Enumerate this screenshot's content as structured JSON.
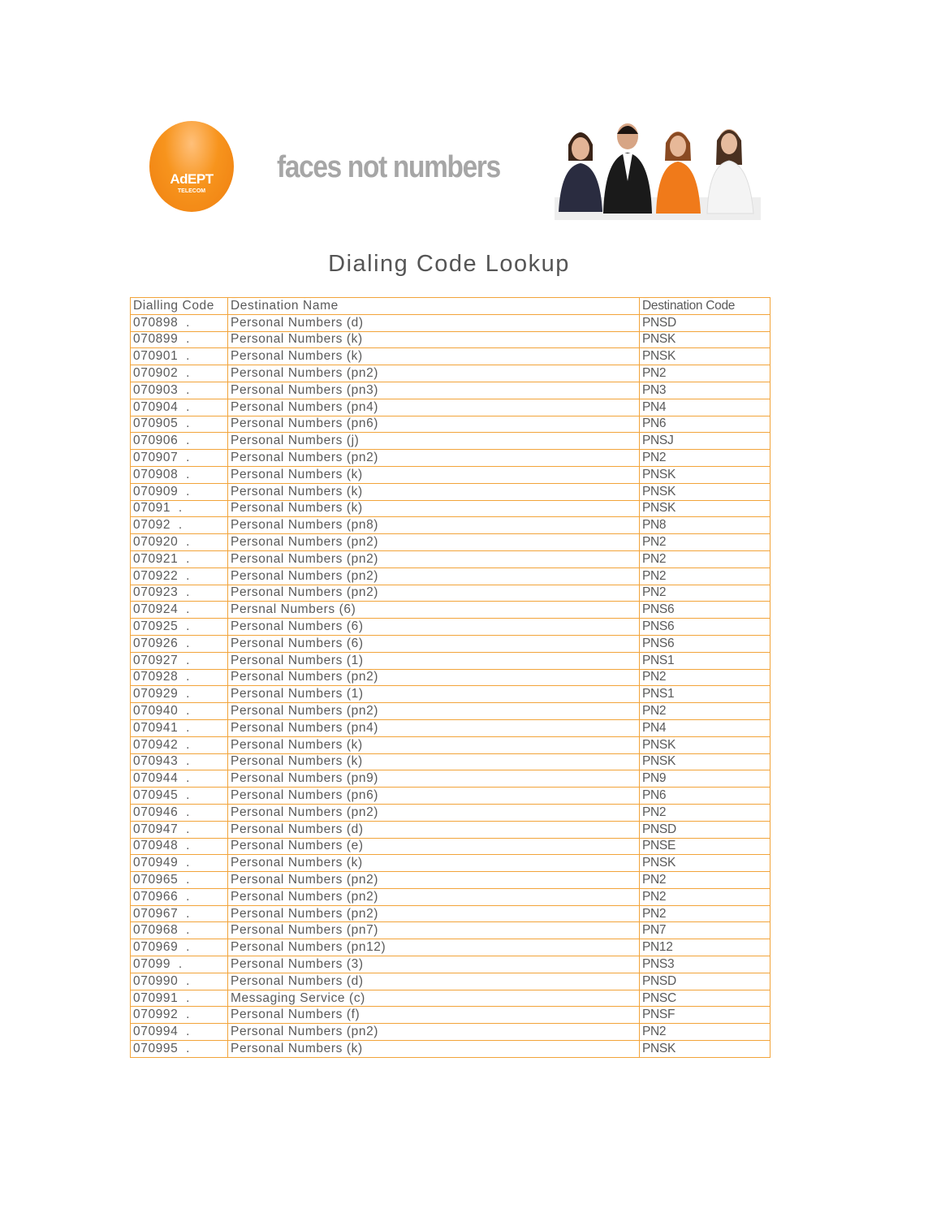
{
  "logo": {
    "brand": "AdEPT",
    "sub": "TELECOM",
    "color": "#f7941d"
  },
  "tagline": "faces not numbers",
  "title": "Dialing Code Lookup",
  "table": {
    "headers": [
      "Dialling Code",
      "Destination Name",
      "Destination Code"
    ],
    "border_color": "#f2a43a",
    "rows": [
      [
        "070898  .",
        "Personal Numbers (d)",
        "PNSD"
      ],
      [
        "070899  .",
        "Personal Numbers (k)",
        "PNSK"
      ],
      [
        "070901  .",
        "Personal Numbers (k)",
        "PNSK"
      ],
      [
        "070902  .",
        "Personal Numbers (pn2)",
        "PN2"
      ],
      [
        "070903  .",
        "Personal Numbers (pn3)",
        "PN3"
      ],
      [
        "070904  .",
        "Personal Numbers (pn4)",
        "PN4"
      ],
      [
        "070905  .",
        "Personal Numbers (pn6)",
        "PN6"
      ],
      [
        "070906  .",
        "Personal Numbers (j)",
        "PNSJ"
      ],
      [
        "070907  .",
        "Personal Numbers (pn2)",
        "PN2"
      ],
      [
        "070908  .",
        "Personal Numbers (k)",
        "PNSK"
      ],
      [
        "070909  .",
        "Personal Numbers (k)",
        "PNSK"
      ],
      [
        "07091  .",
        "Personal Numbers (k)",
        "PNSK"
      ],
      [
        "07092  .",
        "Personal Numbers (pn8)",
        "PN8"
      ],
      [
        "070920  .",
        "Personal Numbers (pn2)",
        "PN2"
      ],
      [
        "070921  .",
        "Personal Numbers (pn2)",
        "PN2"
      ],
      [
        "070922  .",
        "Personal Numbers (pn2)",
        "PN2"
      ],
      [
        "070923  .",
        "Personal Numbers (pn2)",
        "PN2"
      ],
      [
        "070924  .",
        "Persnal Numbers (6)",
        "PNS6"
      ],
      [
        "070925  .",
        "Personal Numbers (6)",
        "PNS6"
      ],
      [
        "070926  .",
        "Personal Numbers (6)",
        "PNS6"
      ],
      [
        "070927  .",
        "Personal Numbers (1)",
        "PNS1"
      ],
      [
        "070928  .",
        "Personal Numbers (pn2)",
        "PN2"
      ],
      [
        "070929  .",
        "Personal Numbers (1)",
        "PNS1"
      ],
      [
        "070940  .",
        "Personal Numbers (pn2)",
        "PN2"
      ],
      [
        "070941  .",
        "Personal Numbers (pn4)",
        "PN4"
      ],
      [
        "070942  .",
        "Personal Numbers (k)",
        "PNSK"
      ],
      [
        "070943  .",
        "Personal Numbers (k)",
        "PNSK"
      ],
      [
        "070944  .",
        "Personal Numbers (pn9)",
        "PN9"
      ],
      [
        "070945  .",
        "Personal Numbers (pn6)",
        "PN6"
      ],
      [
        "070946  .",
        "Personal Numbers (pn2)",
        "PN2"
      ],
      [
        "070947  .",
        "Personal Numbers (d)",
        "PNSD"
      ],
      [
        "070948  .",
        "Personal Numbers (e)",
        "PNSE"
      ],
      [
        "070949  .",
        "Personal Numbers (k)",
        "PNSK"
      ],
      [
        "070965  .",
        "Personal Numbers (pn2)",
        "PN2"
      ],
      [
        "070966  .",
        "Personal Numbers (pn2)",
        "PN2"
      ],
      [
        "070967  .",
        "Personal Numbers (pn2)",
        "PN2"
      ],
      [
        "070968  .",
        "Personal Numbers (pn7)",
        "PN7"
      ],
      [
        "070969  .",
        "Personal Numbers (pn12)",
        "PN12"
      ],
      [
        "07099  .",
        "Personal Numbers (3)",
        "PNS3"
      ],
      [
        "070990  .",
        "Personal Numbers (d)",
        "PNSD"
      ],
      [
        "070991  .",
        "Messaging Service (c)",
        "PNSC"
      ],
      [
        "070992  .",
        "Personal Numbers (f)",
        "PNSF"
      ],
      [
        "070994  .",
        "Personal Numbers (pn2)",
        "PN2"
      ],
      [
        "070995  .",
        "Personal Numbers (k)",
        "PNSK"
      ]
    ]
  }
}
